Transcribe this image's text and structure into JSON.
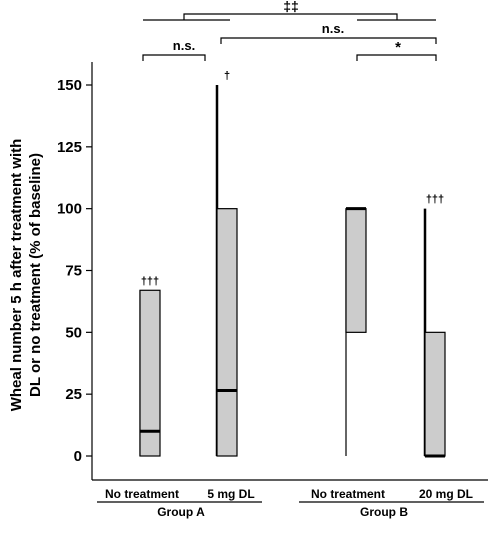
{
  "chart_data": {
    "type": "box",
    "ylabel_line1": "Wheal number 5 h after treatment with",
    "ylabel_line2": "DL or no treatment (% of baseline)",
    "ylim": [
      0,
      150
    ],
    "yticks": [
      0,
      25,
      50,
      75,
      100,
      125,
      150
    ],
    "categories": [
      "No treatment",
      "5 mg DL",
      "No treatment",
      "20 mg DL"
    ],
    "groups": [
      {
        "label": "Group A",
        "members": [
          0,
          1
        ]
      },
      {
        "label": "Group B",
        "members": [
          2,
          3
        ]
      }
    ],
    "boxes": [
      {
        "category": "No treatment",
        "min": 0,
        "q1": 0,
        "median": 10,
        "q3": 67,
        "max": 67,
        "marker": "†††"
      },
      {
        "category": "5 mg DL",
        "min": 0,
        "q1": 0,
        "median": 26.5,
        "q3": 100,
        "max": 150,
        "marker": "†"
      },
      {
        "category": "No treatment",
        "min": 0,
        "q1": 50,
        "median": 100,
        "q3": 100,
        "max": 100,
        "marker": ""
      },
      {
        "category": "20 mg DL",
        "min": 0,
        "q1": 0,
        "median": 0,
        "q3": 50,
        "max": 100,
        "marker": "†††"
      }
    ],
    "comparisons": [
      {
        "from": 0,
        "to": 1,
        "label": "n.s."
      },
      {
        "from": 1,
        "to": 3,
        "label": "n.s."
      },
      {
        "from": 2,
        "to": 3,
        "label": "*"
      },
      {
        "from": "Group A",
        "to": "Group B",
        "label": "‡‡"
      }
    ],
    "colors": {
      "box_fill": "#cccccc",
      "stroke": "#000000"
    }
  }
}
